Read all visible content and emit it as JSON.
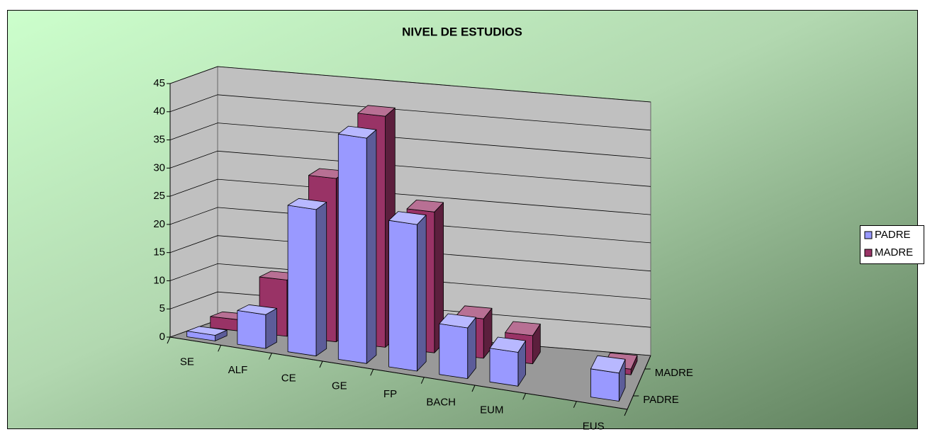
{
  "chart_data": {
    "type": "bar3d",
    "title": "NIVEL DE ESTUDIOS",
    "categories": [
      "SE",
      "ALF",
      "CE",
      "GE",
      "FP",
      "BACH",
      "EUM",
      null,
      "EUS"
    ],
    "series": [
      {
        "name": "PADRE",
        "color": "#9999ff",
        "values": [
          1,
          6,
          26,
          40,
          26,
          9,
          6,
          null,
          5
        ]
      },
      {
        "name": "MADRE",
        "color": "#993366",
        "values": [
          2,
          10,
          29,
          41,
          25,
          7,
          5,
          null,
          1
        ]
      }
    ],
    "ylim": [
      0,
      45
    ],
    "yticks": [
      0,
      5,
      10,
      15,
      20,
      25,
      30,
      35,
      40,
      45
    ],
    "grid": true,
    "legend": "right"
  }
}
